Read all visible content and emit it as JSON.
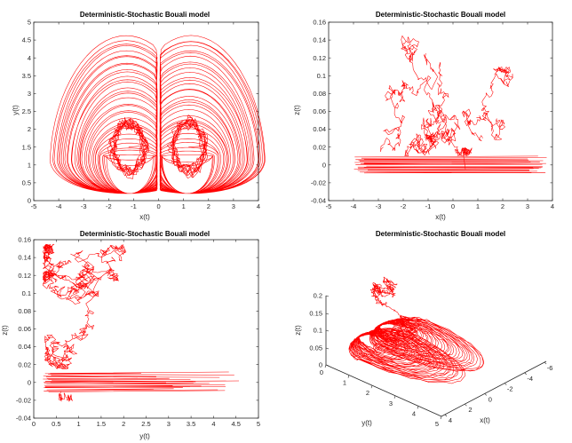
{
  "figure": {
    "background": "#ffffff",
    "line_color": "#ff0000"
  },
  "chart_data": [
    {
      "type": "line",
      "title": "Deterministic-Stochastic Bouali model",
      "xlabel": "x(t)",
      "ylabel": "y(t)",
      "xlim": [
        -5,
        4
      ],
      "ylim": [
        0,
        5
      ],
      "xticks": [
        "-5",
        "-4",
        "-3",
        "-2",
        "-1",
        "0",
        "1",
        "2",
        "3",
        "4"
      ],
      "yticks": [
        "0",
        "0.5",
        "1",
        "1.5",
        "2",
        "2.5",
        "3",
        "3.5",
        "4",
        "4.5",
        "5"
      ],
      "series": [
        {
          "name": "trajectory",
          "description": "two-lobe butterfly attractor, lobes centred near x=-1.2 and x=1.2, y≈1.5, extending to y≈4.6"
        }
      ]
    },
    {
      "type": "line",
      "title": "Deterministic-Stochastic Bouali model",
      "xlabel": "x(t)",
      "ylabel": "z(t)",
      "xlim": [
        -5,
        4
      ],
      "ylim": [
        -0.04,
        0.16
      ],
      "xticks": [
        "-5",
        "-4",
        "-3",
        "-2",
        "-1",
        "0",
        "1",
        "2",
        "3",
        "4"
      ],
      "yticks": [
        "-0.04",
        "-0.02",
        "0",
        "0.02",
        "0.04",
        "0.06",
        "0.08",
        "0.1",
        "0.12",
        "0.14",
        "0.16"
      ],
      "series": [
        {
          "name": "trajectory",
          "description": "horizontal band near z=0 for x in [-4,3.8], noisy excursions up to z≈0.14"
        }
      ]
    },
    {
      "type": "line",
      "title": "Deterministic-Stochastic Bouali model",
      "xlabel": "y(t)",
      "ylabel": "z(t)",
      "xlim": [
        0,
        5
      ],
      "ylim": [
        -0.04,
        0.16
      ],
      "xticks": [
        "0",
        "0.5",
        "1",
        "1.5",
        "2",
        "2.5",
        "3",
        "3.5",
        "4",
        "4.5",
        "5"
      ],
      "yticks": [
        "-0.04",
        "-0.02",
        "0",
        "0.02",
        "0.04",
        "0.06",
        "0.08",
        "0.1",
        "0.12",
        "0.14",
        "0.16"
      ],
      "series": [
        {
          "name": "trajectory",
          "description": "band near z=0 from y=0.1 to y≈4.6, noisy plume up to z≈0.15 for y<3.5"
        }
      ]
    },
    {
      "type": "line",
      "title": "Deterministic-Stochastic Bouali model",
      "xlabel": "x(t)",
      "ylabel": "y(t)",
      "zlabel": "z(t)",
      "x_ticks": [
        "-6",
        "-4",
        "-2",
        "0",
        "2",
        "4"
      ],
      "y_ticks": [
        "0",
        "1",
        "2",
        "3",
        "4",
        "5"
      ],
      "z_ticks": [
        "0",
        "0.05",
        "0.1",
        "0.15",
        "0.2"
      ],
      "series": [
        {
          "name": "trajectory",
          "description": "3D view of the butterfly attractor with noisy excursions above"
        }
      ]
    }
  ]
}
